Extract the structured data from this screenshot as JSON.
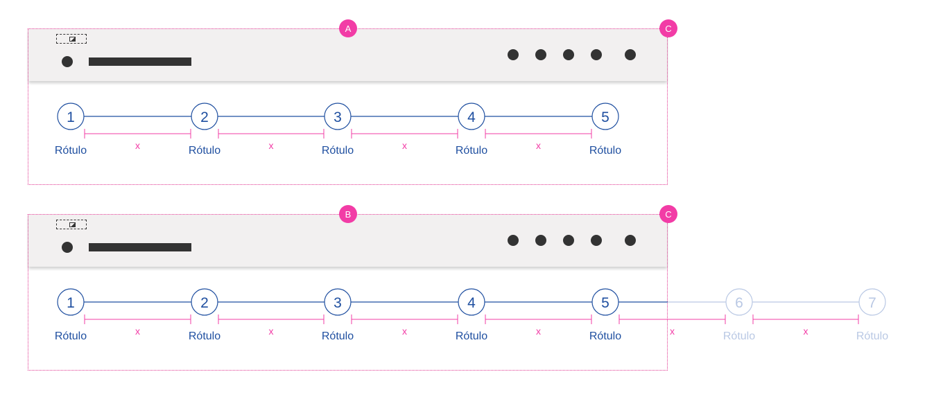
{
  "panels": [
    {
      "id": "A",
      "badges": {
        "top": "A",
        "corner": "C"
      },
      "steps": [
        {
          "number": "1",
          "label": "Rótulo",
          "state": "active"
        },
        {
          "number": "2",
          "label": "Rótulo",
          "state": "active"
        },
        {
          "number": "3",
          "label": "Rótulo",
          "state": "active"
        },
        {
          "number": "4",
          "label": "Rótulo",
          "state": "active"
        },
        {
          "number": "5",
          "label": "Rótulo",
          "state": "active"
        }
      ],
      "gap_label": "x"
    },
    {
      "id": "B",
      "badges": {
        "top": "B",
        "corner": "C"
      },
      "steps": [
        {
          "number": "1",
          "label": "Rótulo",
          "state": "active"
        },
        {
          "number": "2",
          "label": "Rótulo",
          "state": "active"
        },
        {
          "number": "3",
          "label": "Rótulo",
          "state": "active"
        },
        {
          "number": "4",
          "label": "Rótulo",
          "state": "active"
        },
        {
          "number": "5",
          "label": "Rótulo",
          "state": "active"
        },
        {
          "number": "6",
          "label": "Rótulo",
          "state": "overflow"
        },
        {
          "number": "7",
          "label": "Rótulo",
          "state": "overflow"
        }
      ],
      "gap_label": "x"
    }
  ],
  "header": {
    "image_icon": "image-placeholder-icon",
    "nav_items": 5
  },
  "colors": {
    "step": "#1f4fa0",
    "step_faded": "#b9c8e4",
    "annotation": "#f23ca6",
    "header_bg": "#f2f0f0",
    "dark": "#333333"
  }
}
